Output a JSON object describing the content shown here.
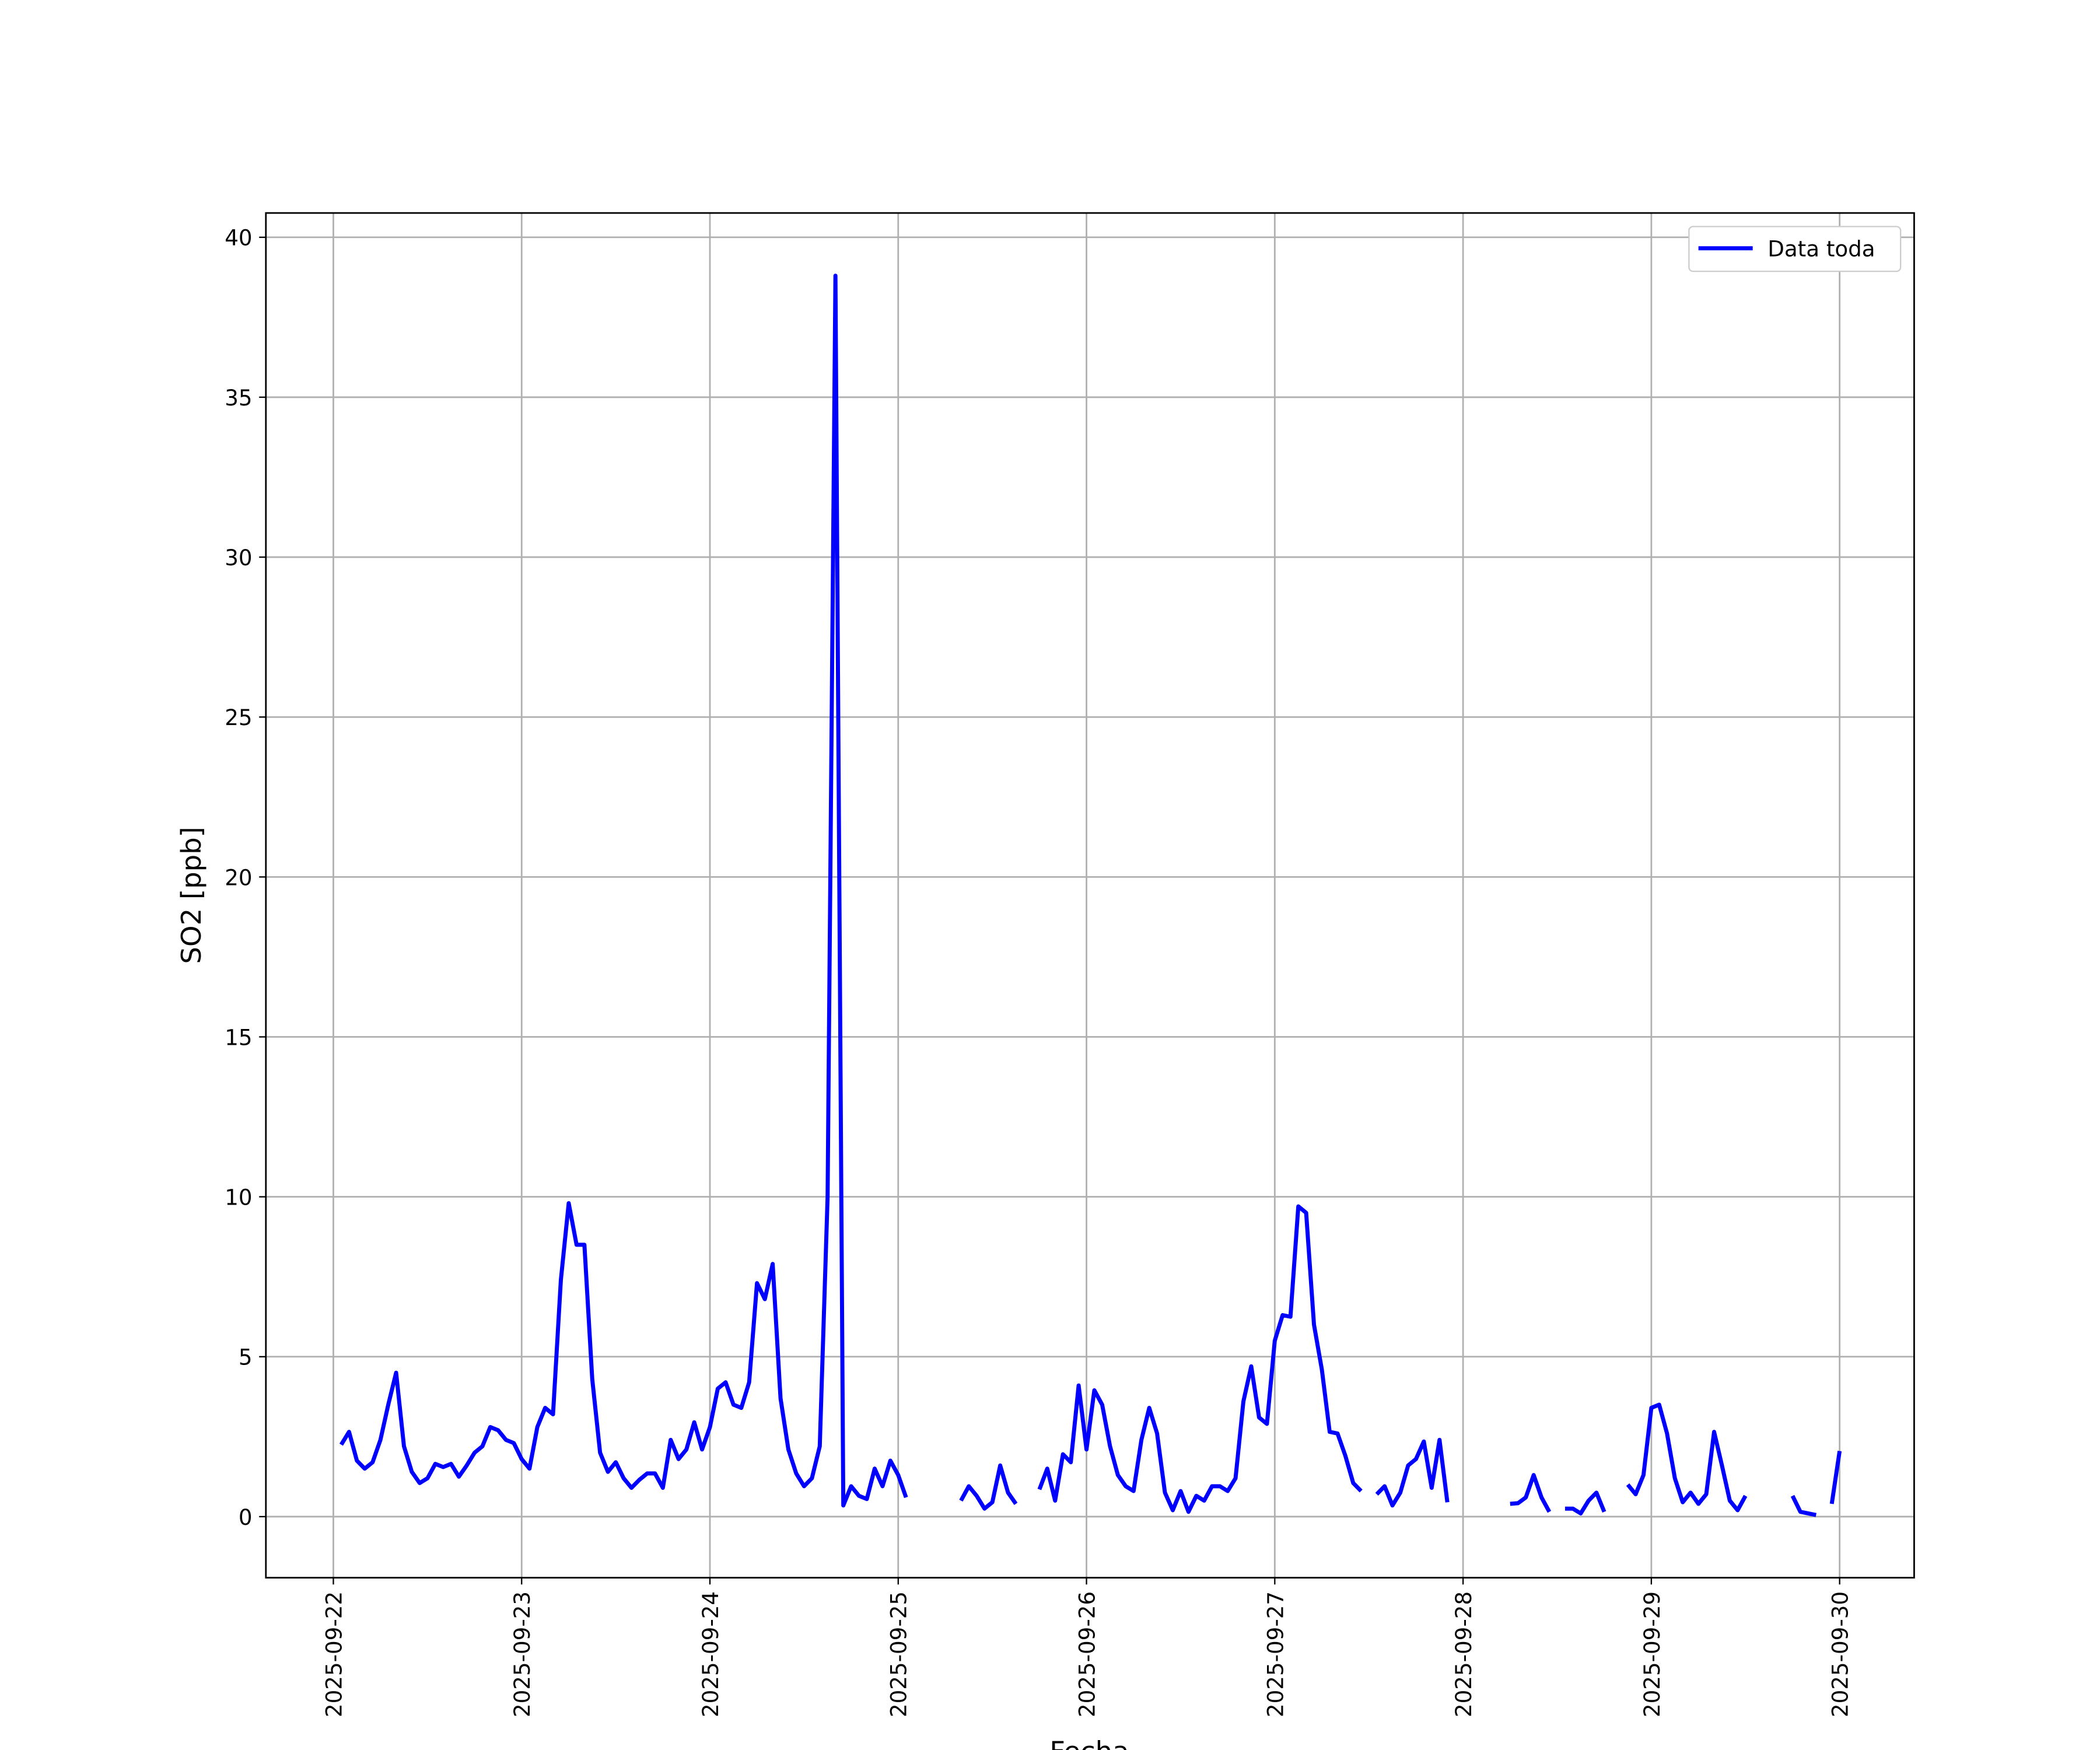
{
  "chart_data": {
    "type": "line",
    "x_label": "Fecha",
    "y_label": "SO2 [ppb]",
    "x": [
      1,
      2,
      3,
      4,
      5,
      6,
      7,
      8,
      9,
      10,
      11,
      12,
      13,
      14,
      15,
      16,
      17,
      18,
      19,
      20,
      21,
      22,
      23,
      24,
      25,
      26,
      27,
      28,
      29,
      30,
      31,
      32,
      33,
      34,
      35,
      36,
      37,
      38,
      39,
      40,
      41,
      42,
      43,
      44,
      45,
      46,
      47,
      48,
      49,
      50,
      51,
      52,
      53,
      54,
      55,
      56,
      57,
      58,
      59,
      60,
      61,
      62,
      63,
      64,
      65,
      66,
      67,
      68,
      69,
      70,
      71,
      72,
      73,
      74,
      75,
      76,
      77,
      78,
      79,
      80,
      81,
      82,
      83,
      84,
      85,
      86,
      87,
      88,
      89,
      90,
      91,
      92,
      93,
      94,
      95,
      96,
      97,
      98,
      99,
      100,
      101,
      102,
      103,
      104,
      105,
      106,
      107,
      108,
      109,
      110,
      111,
      112,
      113,
      114,
      115,
      116,
      117,
      118,
      119,
      120,
      121,
      122,
      123,
      124,
      125,
      126,
      127,
      128,
      129,
      130,
      131,
      132,
      133,
      134,
      135,
      136,
      137,
      138,
      139,
      140,
      141,
      142,
      143,
      144,
      145,
      146,
      147,
      148,
      149,
      150,
      151,
      152,
      153,
      154,
      155,
      156,
      157,
      158,
      159,
      160,
      161,
      162,
      163,
      164,
      165,
      166,
      167,
      168,
      169,
      170,
      171,
      172,
      173,
      174,
      175,
      176,
      177,
      178,
      179,
      180,
      181,
      182,
      183,
      184,
      185,
      186,
      187,
      188,
      189,
      190,
      191,
      192
    ],
    "series": [
      {
        "name": "Data toda",
        "color": "#0000ff",
        "values": [
          2.25,
          2.65,
          1.75,
          1.5,
          1.7,
          2.4,
          3.5,
          4.5,
          2.2,
          1.4,
          1.05,
          1.2,
          1.65,
          1.55,
          1.65,
          1.25,
          1.6,
          2.0,
          2.2,
          2.8,
          2.7,
          2.4,
          2.3,
          1.8,
          1.5,
          2.8,
          3.4,
          3.2,
          7.4,
          9.8,
          8.5,
          8.5,
          4.3,
          2.0,
          1.4,
          1.7,
          1.2,
          0.9,
          1.15,
          1.35,
          1.35,
          0.9,
          2.4,
          1.8,
          2.1,
          2.95,
          2.1,
          2.8,
          4.0,
          4.2,
          3.5,
          3.4,
          4.2,
          7.3,
          6.8,
          7.9,
          3.7,
          2.1,
          1.35,
          0.95,
          1.2,
          2.2,
          10.0,
          38.8,
          0.35,
          0.95,
          0.65,
          0.55,
          1.5,
          0.95,
          1.75,
          1.3,
          0.6,
          null,
          null,
          null,
          null,
          null,
          null,
          0.5,
          0.95,
          0.65,
          0.25,
          0.45,
          1.6,
          0.75,
          0.4,
          null,
          null,
          0.85,
          1.5,
          0.5,
          1.95,
          1.7,
          4.1,
          2.1,
          3.95,
          3.5,
          2.2,
          1.3,
          0.95,
          0.8,
          2.4,
          3.4,
          2.6,
          0.75,
          0.2,
          0.8,
          0.15,
          0.65,
          0.5,
          0.95,
          0.95,
          0.8,
          1.2,
          3.6,
          4.7,
          3.1,
          2.9,
          5.5,
          6.3,
          6.25,
          9.7,
          9.5,
          6.0,
          4.6,
          2.65,
          2.6,
          1.9,
          1.05,
          0.8,
          null,
          0.7,
          0.95,
          0.35,
          0.75,
          1.6,
          1.8,
          2.35,
          0.9,
          2.4,
          0.45,
          null,
          null,
          null,
          null,
          null,
          null,
          null,
          0.4,
          0.42,
          0.6,
          1.3,
          0.6,
          0.15,
          null,
          0.25,
          0.25,
          0.1,
          0.5,
          0.75,
          0.15,
          null,
          null,
          1.0,
          0.7,
          1.3,
          3.4,
          3.5,
          2.6,
          1.2,
          0.45,
          0.75,
          0.4,
          0.7,
          2.65,
          1.6,
          0.5,
          0.2,
          0.65,
          null,
          null,
          null,
          null,
          null,
          0.65,
          0.15,
          0.1,
          0.05,
          null,
          0.4,
          2.05
        ]
      }
    ],
    "xlim": [
      -8.6,
      201.5
    ],
    "xticks": [
      {
        "value": 0,
        "label": "2025-09-22"
      },
      {
        "value": 24,
        "label": "2025-09-23"
      },
      {
        "value": 48,
        "label": "2025-09-24"
      },
      {
        "value": 72,
        "label": "2025-09-25"
      },
      {
        "value": 96,
        "label": "2025-09-26"
      },
      {
        "value": 120,
        "label": "2025-09-27"
      },
      {
        "value": 144,
        "label": "2025-09-28"
      },
      {
        "value": 168,
        "label": "2025-09-29"
      },
      {
        "value": 192,
        "label": "2025-09-30"
      }
    ],
    "ylim": [
      -1.91,
      40.76
    ],
    "yticks": [
      0,
      5,
      10,
      15,
      20,
      25,
      30,
      35,
      40
    ],
    "grid": true,
    "legend": "upper right"
  }
}
